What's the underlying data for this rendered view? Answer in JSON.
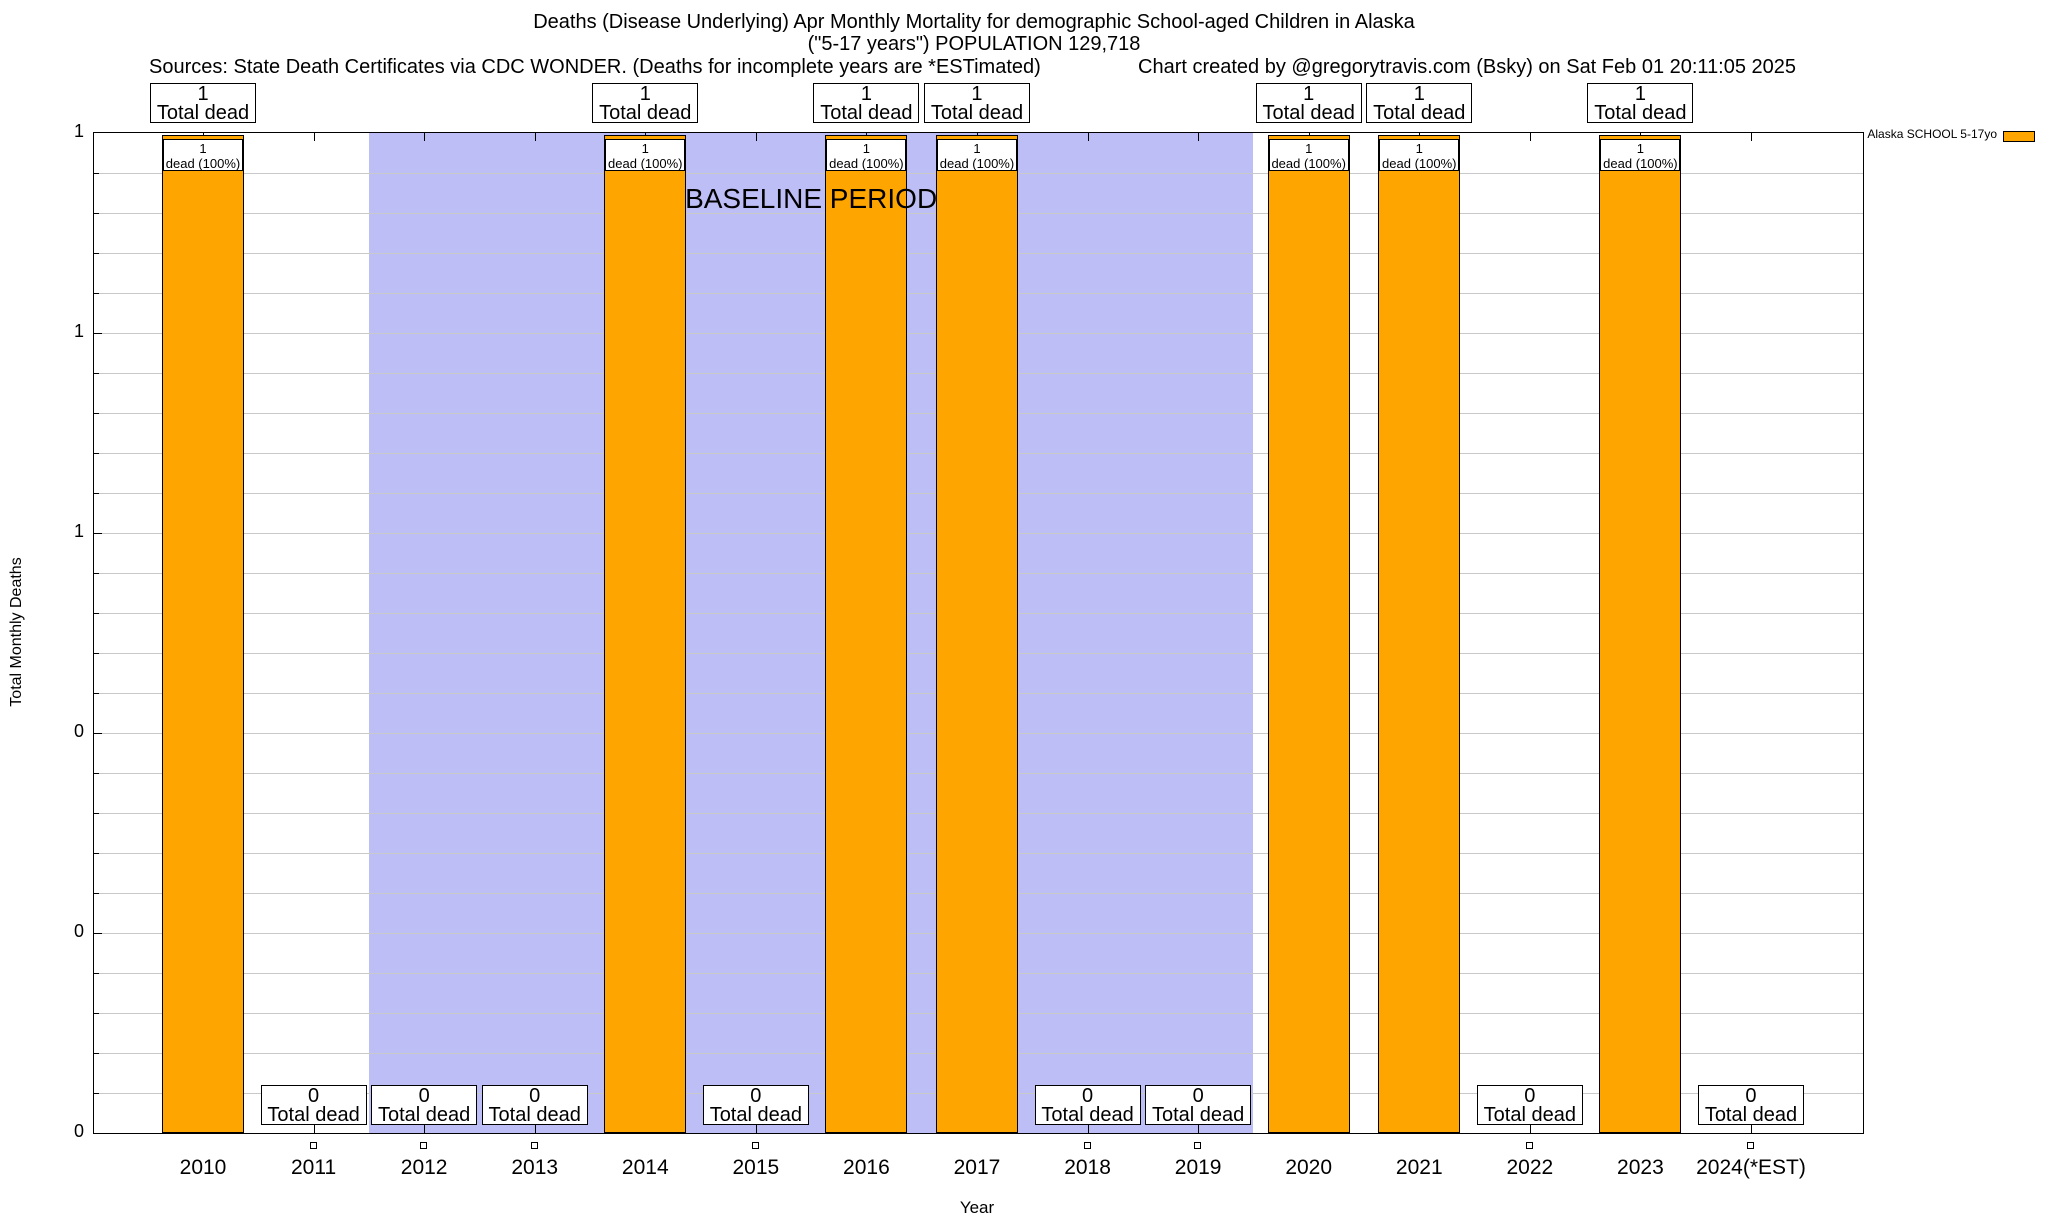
{
  "header": {
    "title_line1": "Deaths (Disease Underlying) Apr Monthly Mortality for demographic School-aged Children in Alaska",
    "title_line2": "(\"5-17 years\") POPULATION 129,718",
    "sources": "Sources: State Death Certificates via CDC WONDER. (Deaths for incomplete years are *ESTimated)",
    "credit": "Chart created by @gregorytravis.com (Bsky) on Sat Feb 01 20:11:05 2025"
  },
  "legend": {
    "label": "Alaska SCHOOL 5-17yo",
    "swatch_color": "#FFA500"
  },
  "axis_titles": {
    "y": "Total Monthly Deaths",
    "x": "Year"
  },
  "chart_data": {
    "type": "bar",
    "title": "Deaths (Disease Underlying) Apr Monthly Mortality for demographic School-aged Children in Alaska (\"5-17 years\") POPULATION 129,718",
    "xlabel": "Year",
    "ylabel": "Total Monthly Deaths",
    "ylim": [
      0,
      1
    ],
    "grid": true,
    "ytick_labels_top_to_bottom": [
      "1",
      "1",
      "1",
      "0",
      "0",
      "0"
    ],
    "categories": [
      "2010",
      "2011",
      "2012",
      "2013",
      "2014",
      "2015",
      "2016",
      "2017",
      "2018",
      "2019",
      "2020",
      "2021",
      "2022",
      "2023",
      "2024(*EST)"
    ],
    "series": [
      {
        "name": "Alaska SCHOOL 5-17yo",
        "values": [
          1,
          0,
          0,
          0,
          1,
          0,
          1,
          1,
          0,
          0,
          1,
          1,
          0,
          1,
          0
        ]
      }
    ],
    "bar_color": "#FFA500",
    "baseline_region": {
      "label": "BASELINE PERIOD",
      "from_year": 2011.5,
      "to_year": 2019.5,
      "color": "#BEBEF6"
    },
    "annotations": {
      "bar_top_suffix": "Total dead",
      "in_bar_suffix": "dead (100%)",
      "zero_suffix": "Total dead"
    },
    "legend_position": "top-right-outside"
  },
  "colors": {
    "bar": "#FFA500",
    "baseline_band": "#BEBEF6",
    "gridline": "#C9C9C9"
  }
}
